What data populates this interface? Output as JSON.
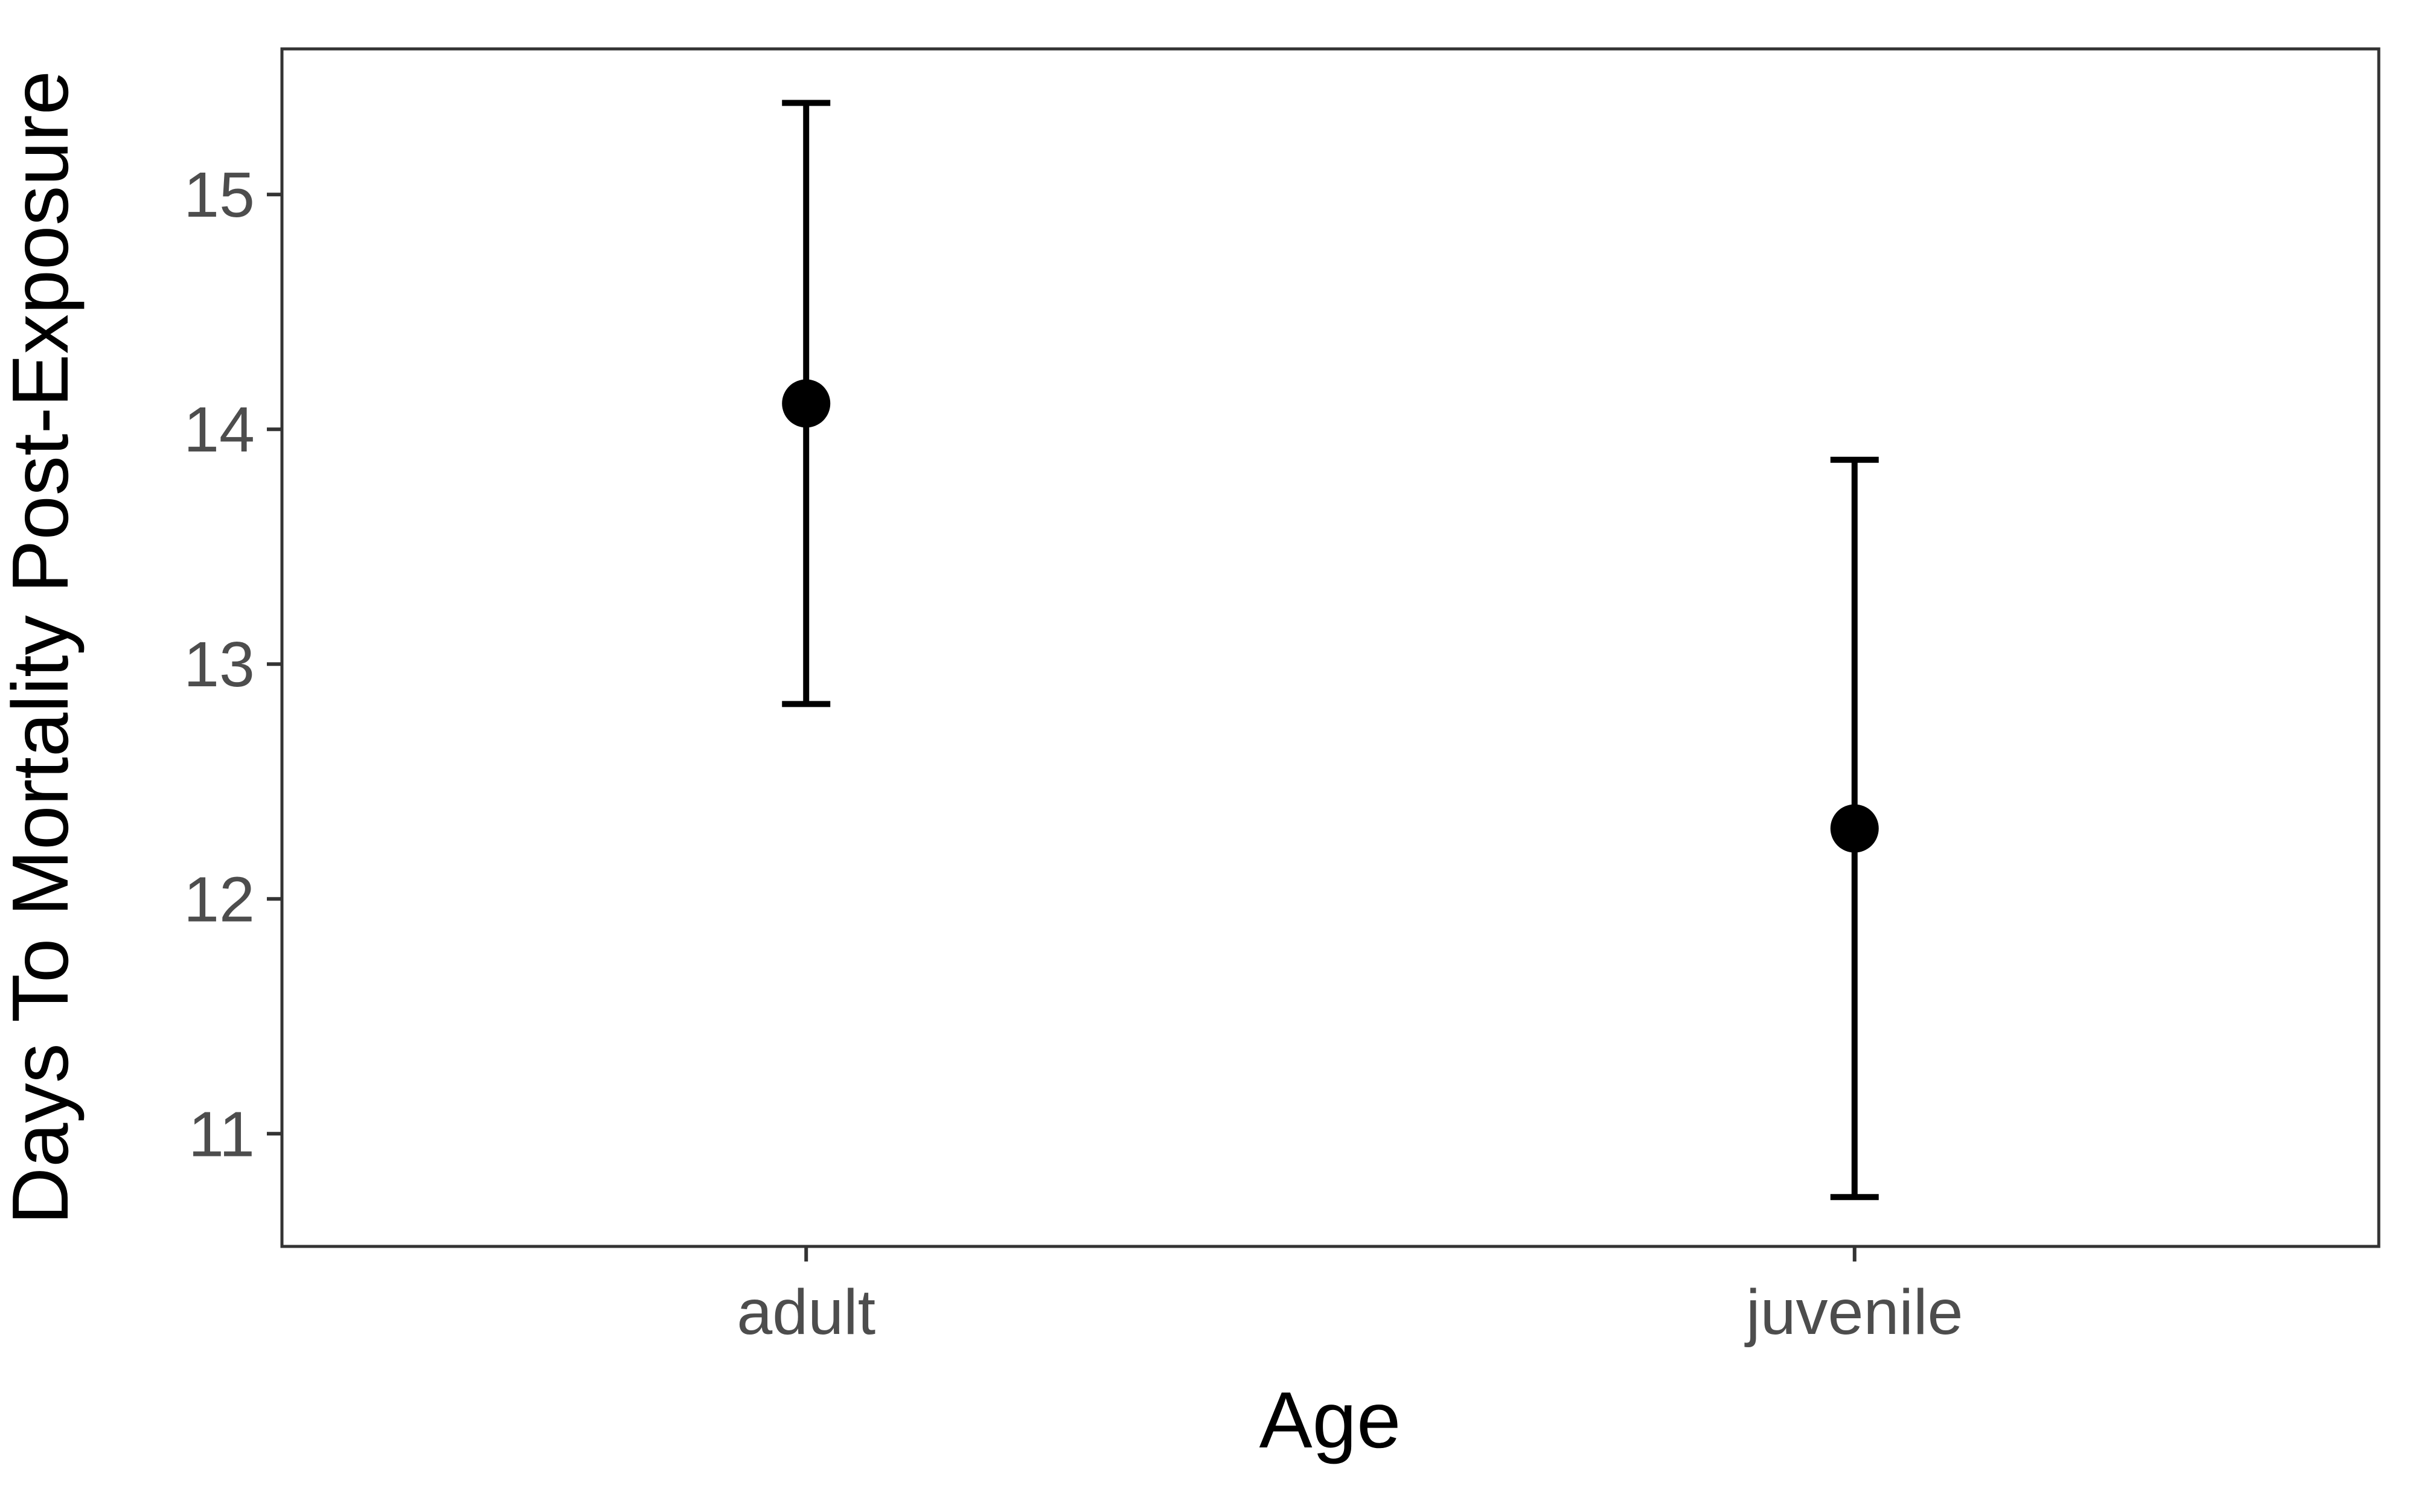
{
  "chart_data": {
    "type": "scatter",
    "subtype": "point with error bars",
    "title": "",
    "xlabel": "Age",
    "ylabel": "Days To Mortality Post-Exposure",
    "categories": [
      "adult",
      "juvenile"
    ],
    "series": [
      {
        "values": [
          14.11,
          12.3
        ],
        "error_lower": [
          12.83,
          10.73
        ],
        "error_upper": [
          15.39,
          13.87
        ]
      }
    ],
    "ylim": [
      10.52,
      15.62
    ],
    "yticks": [
      11,
      12,
      13,
      14,
      15
    ],
    "grid": false,
    "legend": "none",
    "colors": {
      "marks": "#000000",
      "panel_border": "#333333",
      "tick_text": "#4d4d4d",
      "axis_title": "#000000",
      "background": "#ffffff"
    }
  }
}
